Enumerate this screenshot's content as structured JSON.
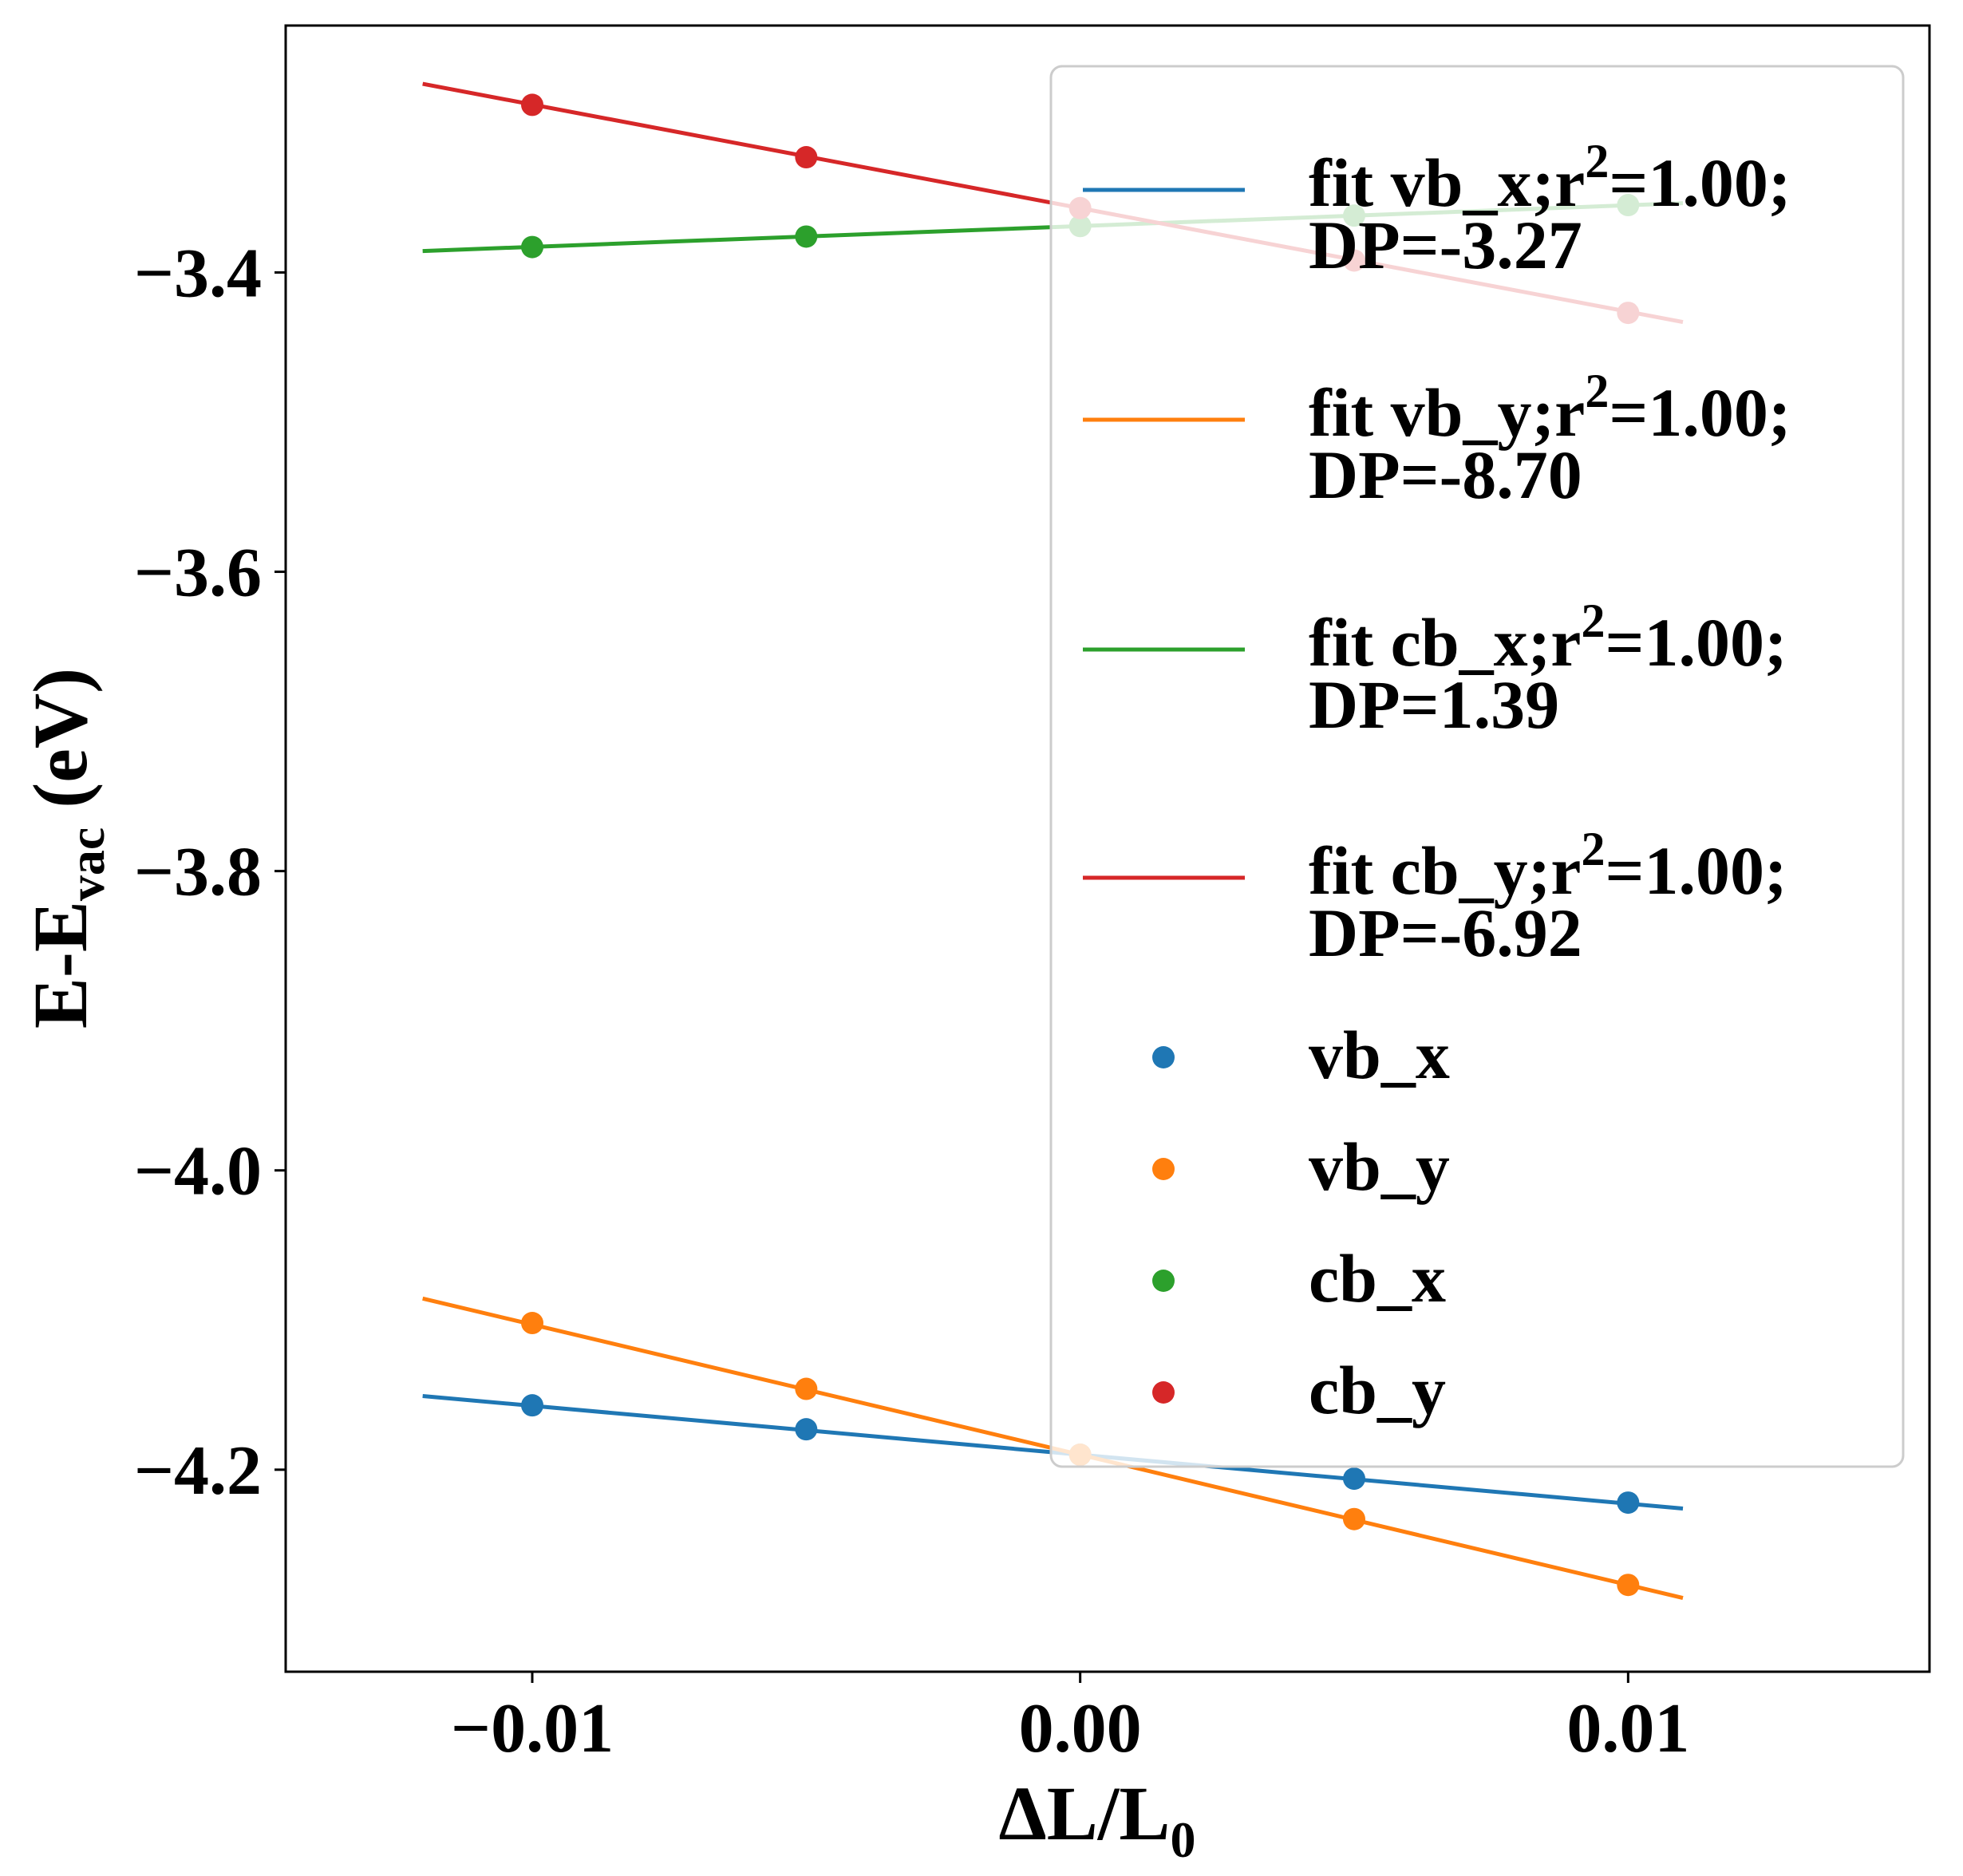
{
  "chart_data": {
    "type": "line",
    "xlabel": "ΔL/L",
    "xlabel_sub": "0",
    "ylabel": "E-E",
    "ylabel_sub": "vac",
    "ylabel_suffix": " (eV)",
    "xlim": [
      -0.0145,
      0.0155
    ],
    "ylim": [
      -4.335,
      -3.235
    ],
    "xticks": [
      -0.01,
      0.0,
      0.01
    ],
    "xtick_labels": [
      "−0.01",
      "0.00",
      "0.01"
    ],
    "yticks": [
      -3.4,
      -3.6,
      -3.8,
      -4.0,
      -4.2
    ],
    "ytick_labels": [
      "−3.4",
      "−3.6",
      "−3.8",
      "−4.0",
      "−4.2"
    ],
    "grid": false,
    "legend_position": "top-right",
    "x": [
      -0.01,
      -0.005,
      0.0,
      0.005,
      0.01
    ],
    "fit_x_range": [
      -0.012,
      0.011
    ],
    "series": [
      {
        "name": "vb_x",
        "color": "#1f77b4",
        "values": [
          -4.157,
          -4.173,
          -4.19,
          -4.206,
          -4.222
        ]
      },
      {
        "name": "vb_y",
        "color": "#ff7f0e",
        "values": [
          -4.102,
          -4.146,
          -4.19,
          -4.233,
          -4.277
        ]
      },
      {
        "name": "cb_x",
        "color": "#2ca02c",
        "values": [
          -3.383,
          -3.376,
          -3.369,
          -3.362,
          -3.355
        ]
      },
      {
        "name": "cb_y",
        "color": "#d62728",
        "values": [
          -3.288,
          -3.323,
          -3.357,
          -3.392,
          -3.427
        ]
      }
    ],
    "fits": [
      {
        "series": "vb_x",
        "color": "#1f77b4",
        "slope": -3.27,
        "intercept": -4.19,
        "label_line1": "fit vb_x;r",
        "label_sup": "2",
        "label_line1_end": "=1.00;",
        "label_line2": "DP=-3.27"
      },
      {
        "series": "vb_y",
        "color": "#ff7f0e",
        "slope": -8.7,
        "intercept": -4.19,
        "label_line1": "fit vb_y;r",
        "label_sup": "2",
        "label_line1_end": "=1.00;",
        "label_line2": "DP=-8.70"
      },
      {
        "series": "cb_x",
        "color": "#2ca02c",
        "slope": 1.39,
        "intercept": -3.369,
        "label_line1": "fit cb_x;r",
        "label_sup": "2",
        "label_line1_end": "=1.00;",
        "label_line2": "DP=1.39"
      },
      {
        "series": "cb_y",
        "color": "#d62728",
        "slope": -6.92,
        "intercept": -3.357,
        "label_line1": "fit cb_y;r",
        "label_sup": "2",
        "label_line1_end": "=1.00;",
        "label_line2": "DP=-6.92"
      }
    ]
  }
}
